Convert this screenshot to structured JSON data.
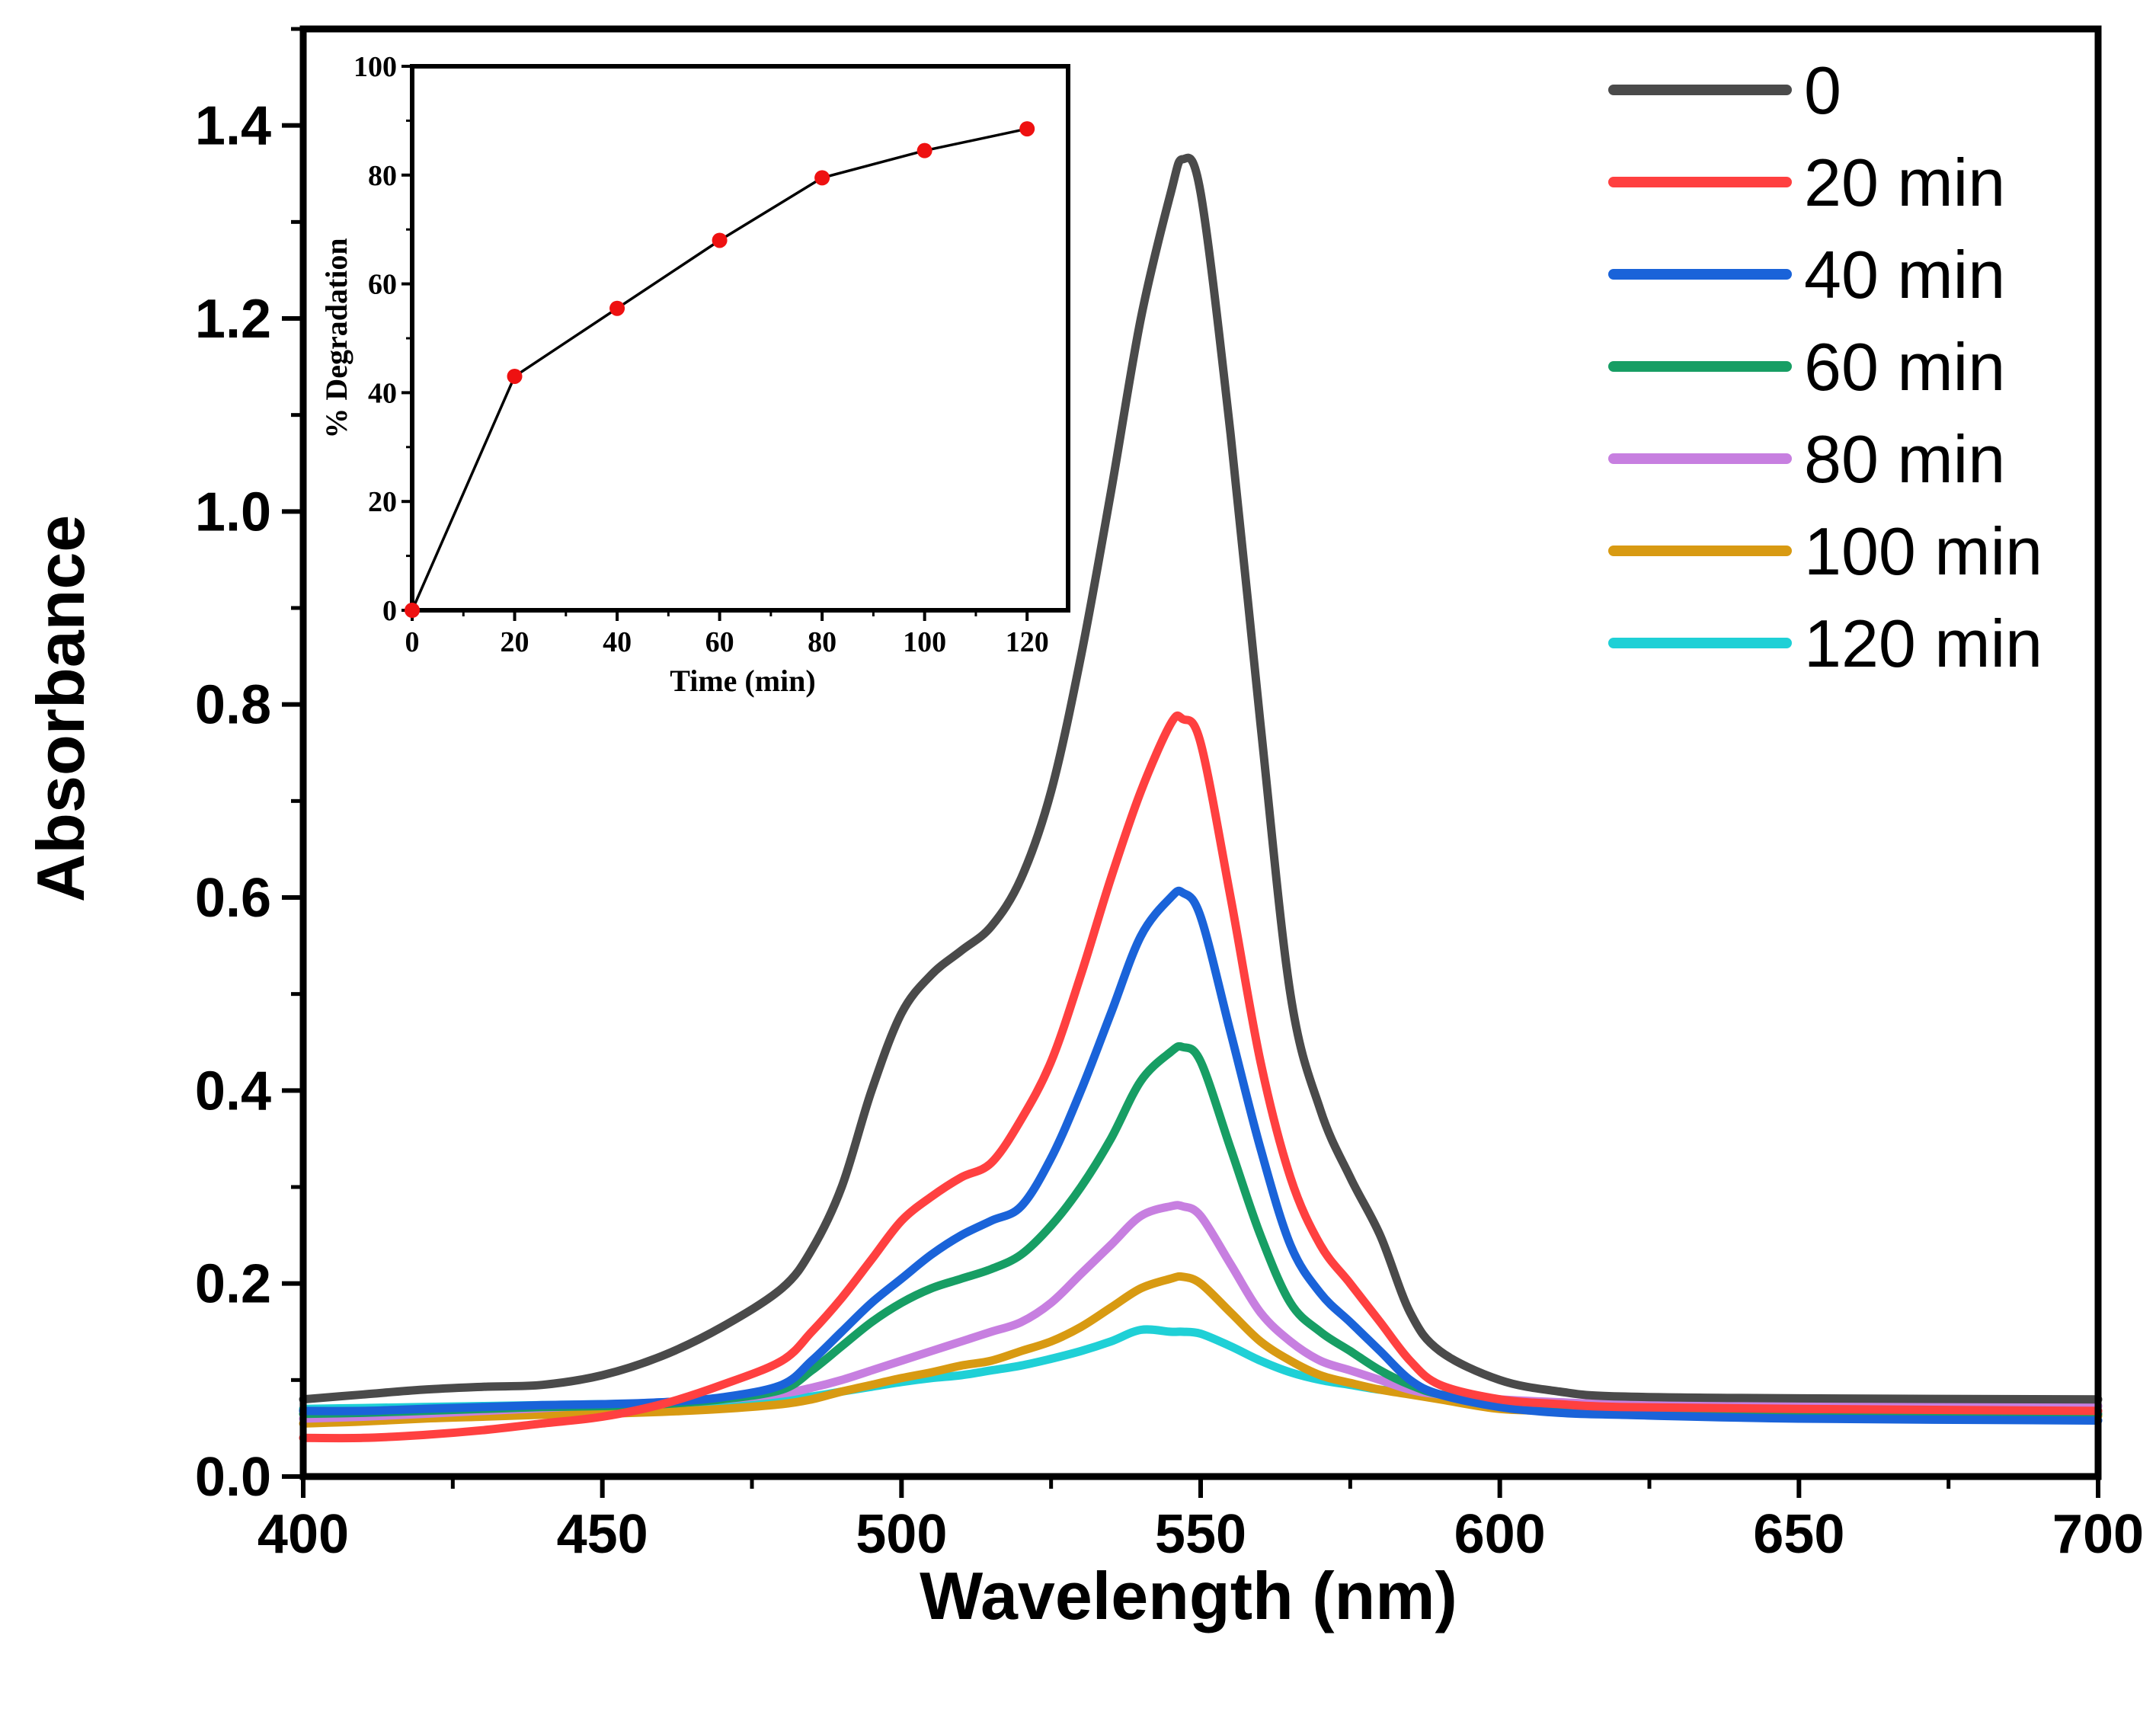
{
  "chart_data": [
    {
      "id": "main",
      "type": "line",
      "title": "",
      "xlabel": "Wavelength (nm)",
      "ylabel": "Absorbance",
      "xlim": [
        400,
        700
      ],
      "ylim": [
        0.0,
        1.5
      ],
      "xticks": [
        "400",
        "450",
        "500",
        "550",
        "600",
        "650",
        "700"
      ],
      "yticks": [
        "0.0",
        "0.2",
        "0.4",
        "0.6",
        "0.8",
        "1.0",
        "1.2",
        "1.4"
      ],
      "legend_position": "top-right",
      "x": [
        400,
        410,
        420,
        430,
        440,
        450,
        460,
        470,
        480,
        485,
        490,
        495,
        500,
        505,
        510,
        515,
        520,
        525,
        530,
        535,
        540,
        545,
        547,
        550,
        555,
        560,
        565,
        570,
        575,
        580,
        585,
        590,
        600,
        610,
        620,
        650,
        700
      ],
      "series": [
        {
          "name": "0",
          "color": "#4a4a4a",
          "values": [
            0.08,
            0.085,
            0.09,
            0.093,
            0.095,
            0.105,
            0.125,
            0.155,
            0.195,
            0.235,
            0.3,
            0.4,
            0.48,
            0.52,
            0.545,
            0.57,
            0.62,
            0.71,
            0.85,
            1.02,
            1.2,
            1.33,
            1.365,
            1.33,
            1.08,
            0.78,
            0.5,
            0.38,
            0.31,
            0.25,
            0.17,
            0.13,
            0.1,
            0.088,
            0.083,
            0.081,
            0.08
          ]
        },
        {
          "name": "20 min",
          "color": "#ff4040",
          "values": [
            0.04,
            0.04,
            0.043,
            0.048,
            0.055,
            0.062,
            0.075,
            0.095,
            0.12,
            0.15,
            0.185,
            0.225,
            0.265,
            0.29,
            0.31,
            0.325,
            0.37,
            0.43,
            0.52,
            0.62,
            0.71,
            0.78,
            0.785,
            0.76,
            0.6,
            0.43,
            0.31,
            0.24,
            0.2,
            0.16,
            0.12,
            0.095,
            0.08,
            0.075,
            0.072,
            0.07,
            0.068
          ]
        },
        {
          "name": "40 min",
          "color": "#1a63d9",
          "values": [
            0.068,
            0.068,
            0.07,
            0.072,
            0.074,
            0.075,
            0.077,
            0.082,
            0.095,
            0.12,
            0.15,
            0.18,
            0.205,
            0.23,
            0.25,
            0.265,
            0.28,
            0.33,
            0.4,
            0.48,
            0.56,
            0.6,
            0.605,
            0.58,
            0.46,
            0.34,
            0.24,
            0.19,
            0.16,
            0.13,
            0.1,
            0.085,
            0.072,
            0.066,
            0.064,
            0.06,
            0.058
          ]
        },
        {
          "name": "60 min",
          "color": "#179e64",
          "values": [
            0.065,
            0.066,
            0.068,
            0.07,
            0.072,
            0.073,
            0.075,
            0.08,
            0.09,
            0.11,
            0.135,
            0.16,
            0.18,
            0.195,
            0.205,
            0.215,
            0.23,
            0.26,
            0.3,
            0.35,
            0.41,
            0.44,
            0.445,
            0.43,
            0.34,
            0.25,
            0.18,
            0.15,
            0.13,
            0.11,
            0.095,
            0.085,
            0.075,
            0.07,
            0.068,
            0.066,
            0.065
          ]
        },
        {
          "name": "80 min",
          "color": "#c77fe0",
          "values": [
            0.06,
            0.062,
            0.065,
            0.068,
            0.071,
            0.074,
            0.077,
            0.08,
            0.086,
            0.092,
            0.1,
            0.11,
            0.12,
            0.13,
            0.14,
            0.15,
            0.16,
            0.18,
            0.21,
            0.24,
            0.27,
            0.28,
            0.28,
            0.27,
            0.22,
            0.17,
            0.14,
            0.12,
            0.11,
            0.1,
            0.09,
            0.085,
            0.08,
            0.077,
            0.075,
            0.074,
            0.073
          ]
        },
        {
          "name": "100 min",
          "color": "#d89a12",
          "values": [
            0.055,
            0.057,
            0.06,
            0.062,
            0.064,
            0.065,
            0.067,
            0.07,
            0.075,
            0.08,
            0.088,
            0.095,
            0.102,
            0.108,
            0.115,
            0.12,
            0.13,
            0.14,
            0.155,
            0.175,
            0.195,
            0.205,
            0.207,
            0.2,
            0.17,
            0.14,
            0.12,
            0.105,
            0.097,
            0.09,
            0.085,
            0.08,
            0.07,
            0.068,
            0.066,
            0.064,
            0.063
          ]
        },
        {
          "name": "120 min",
          "color": "#1fd0d6",
          "values": [
            0.07,
            0.071,
            0.072,
            0.073,
            0.074,
            0.075,
            0.076,
            0.078,
            0.08,
            0.083,
            0.088,
            0.093,
            0.098,
            0.102,
            0.105,
            0.11,
            0.115,
            0.122,
            0.13,
            0.14,
            0.152,
            0.15,
            0.15,
            0.148,
            0.135,
            0.12,
            0.108,
            0.1,
            0.095,
            0.09,
            0.088,
            0.085,
            0.078,
            0.075,
            0.073,
            0.07,
            0.068
          ]
        }
      ]
    },
    {
      "id": "inset",
      "type": "line",
      "title": "",
      "xlabel": "Time (min)",
      "ylabel": "% Degradation",
      "xlim": [
        0,
        128
      ],
      "ylim": [
        0,
        100
      ],
      "xticks": [
        "0",
        "20",
        "40",
        "60",
        "80",
        "100",
        "120"
      ],
      "yticks": [
        "0",
        "20",
        "40",
        "60",
        "80",
        "100"
      ],
      "x": [
        0,
        20,
        40,
        60,
        80,
        100,
        120
      ],
      "values": [
        0,
        43,
        55.5,
        68,
        79.5,
        84.5,
        88.5
      ],
      "line_color": "#000000",
      "marker_color": "#ee1111"
    }
  ]
}
